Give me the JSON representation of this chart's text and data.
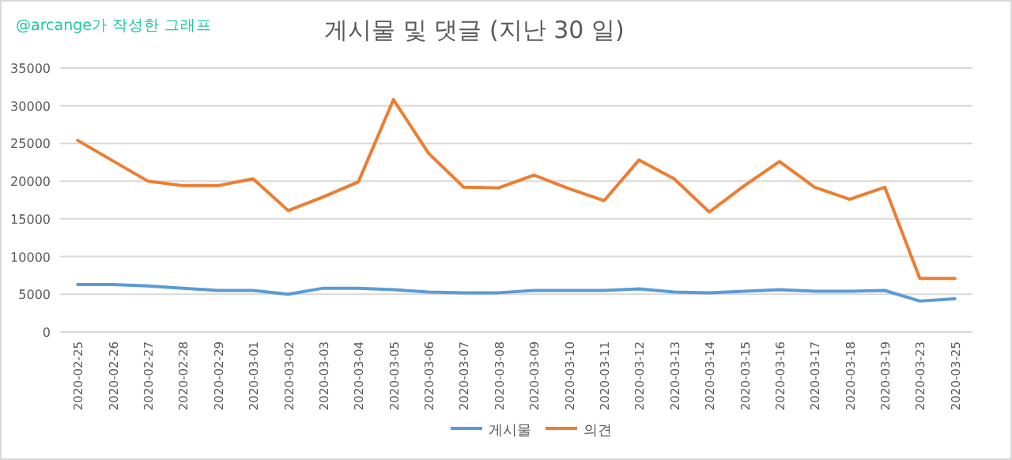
{
  "chart_data": {
    "type": "line",
    "title": "게시물 및 댓글 (지난 30 일)",
    "annotations": [
      "@arcange가 작성한 그래프"
    ],
    "categories": [
      "2020-02-25",
      "2020-02-26",
      "2020-02-27",
      "2020-02-28",
      "2020-02-29",
      "2020-03-01",
      "2020-03-02",
      "2020-03-03",
      "2020-03-04",
      "2020-03-05",
      "2020-03-06",
      "2020-03-07",
      "2020-03-08",
      "2020-03-09",
      "2020-03-10",
      "2020-03-11",
      "2020-03-12",
      "2020-03-13",
      "2020-03-14",
      "2020-03-15",
      "2020-03-16",
      "2020-03-17",
      "2020-03-18",
      "2020-03-19",
      "2020-03-23",
      "2020-03-25"
    ],
    "series": [
      {
        "name": "게시물",
        "color": "#5b9bd5",
        "values": [
          6300,
          6300,
          6100,
          5800,
          5500,
          5500,
          5000,
          5800,
          5800,
          5600,
          5300,
          5200,
          5200,
          5500,
          5500,
          5500,
          5700,
          5300,
          5200,
          5400,
          5600,
          5400,
          5400,
          5500,
          4100,
          4400
        ]
      },
      {
        "name": "의견",
        "color": "#ed7d31",
        "values": [
          25400,
          22700,
          20000,
          19400,
          19400,
          20300,
          16100,
          17900,
          19900,
          30800,
          23700,
          19200,
          19100,
          20800,
          19000,
          17400,
          22800,
          20300,
          15900,
          19400,
          22600,
          19200,
          17600,
          19200,
          7100,
          7100
        ]
      }
    ],
    "ylim": [
      0,
      35000
    ],
    "yticks": [
      0,
      5000,
      10000,
      15000,
      20000,
      25000,
      30000,
      35000
    ],
    "grid": "y",
    "legend": "bottom",
    "marker": "none",
    "line_style": "solid"
  }
}
